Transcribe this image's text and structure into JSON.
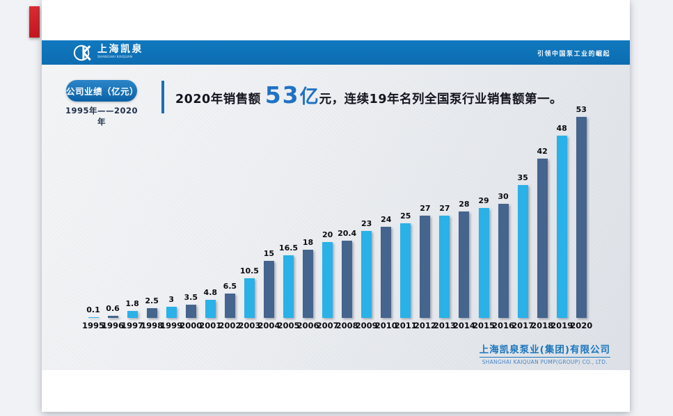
{
  "app": {
    "background_color": "#f1f2f5",
    "bookmark_color": "#c4161e"
  },
  "slide": {
    "header": {
      "brand_cn": "上海凯泉",
      "brand_en": "SHANGHAI KAIQUAN",
      "slogan": "引领中国泵工业的崛起",
      "bar_color": "#0d6cb1"
    },
    "badge": {
      "label": "公司业绩（亿元）",
      "period": "1995年——2020年"
    },
    "headline": {
      "prefix": "2020年销售额",
      "highlight": "53",
      "unit": "亿",
      "yuan": "元，",
      "suffix": "连续19年名列全国泵行业销售额第一。",
      "highlight_color": "#1f72c4"
    },
    "footer": {
      "company_cn": "上海凯泉泵业(集团)有限公司",
      "company_en": "SHANGHAI KAIQUAN PUMP(GROUP) CO., LTD."
    }
  },
  "chart_data": {
    "type": "bar",
    "title": "公司业绩（亿元）",
    "subtitle": "1995年——2020年",
    "categories": [
      "1995",
      "1996",
      "1997",
      "1998",
      "1999",
      "2000",
      "2001",
      "2002",
      "2003",
      "2004",
      "2005",
      "2006",
      "2007",
      "2008",
      "2009",
      "2010",
      "2011",
      "2012",
      "2013",
      "2014",
      "2015",
      "2016",
      "2017",
      "2018",
      "2019",
      "2020"
    ],
    "values": [
      0.1,
      0.6,
      1.8,
      2.5,
      3,
      3.5,
      4.8,
      6.5,
      10.5,
      15,
      16.5,
      18,
      20,
      20.4,
      23,
      24,
      25,
      27,
      27,
      28,
      29,
      30,
      35,
      42,
      48,
      53
    ],
    "bar_colors": {
      "light": "#29b1e8",
      "dark": "#45648e"
    },
    "color_rule": "odd years light cyan, even years dark steel blue",
    "value_labels_shown": true,
    "xlabel": "",
    "ylabel": "",
    "ylim": [
      0,
      55
    ],
    "grid": false,
    "legend": "none"
  }
}
